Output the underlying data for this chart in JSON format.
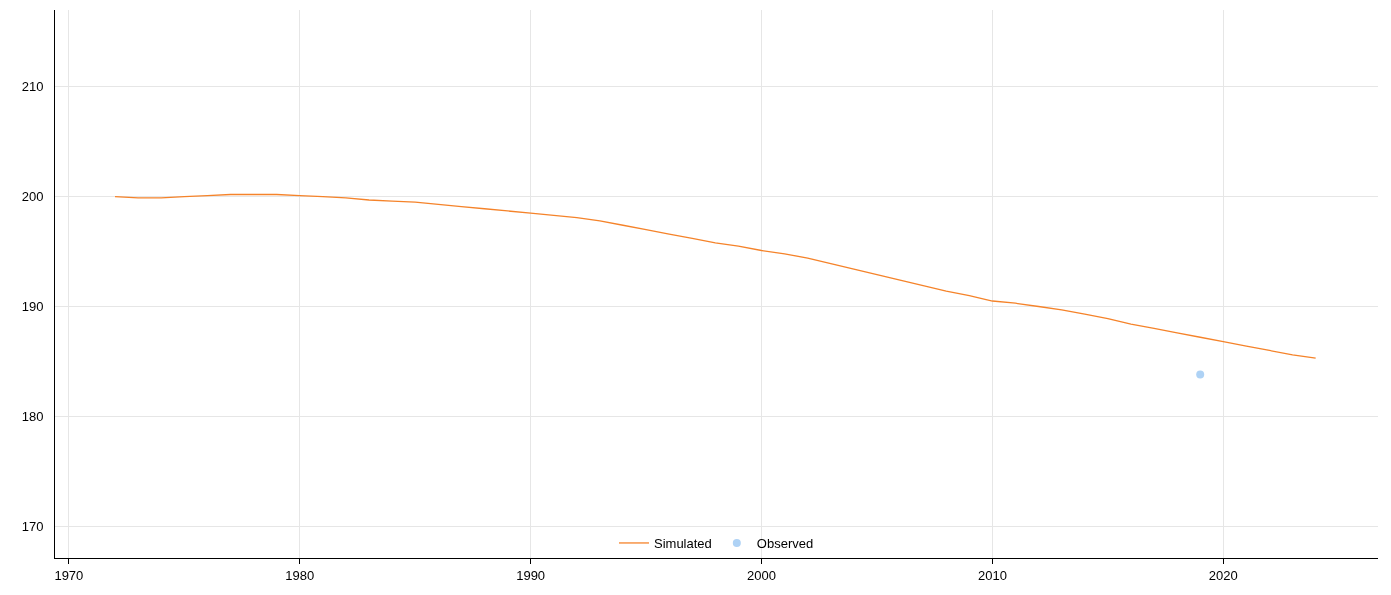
{
  "chart_data": {
    "type": "line",
    "xlim": [
      1969.4,
      2026.7
    ],
    "xticks": [
      1970,
      1980,
      1990,
      2000,
      2010,
      2020
    ],
    "ylim": [
      167.1,
      217
    ],
    "yticks": [
      170,
      180,
      190,
      200,
      210
    ],
    "grid": true,
    "legend": "bottom",
    "series": [
      {
        "name": "Simulated",
        "color": "#f5832a",
        "marker": "none",
        "line_style": "solid",
        "x": [
          1972,
          1973,
          1974,
          1975,
          1976,
          1977,
          1978,
          1979,
          1980,
          1981,
          1982,
          1983,
          1984,
          1985,
          1986,
          1987,
          1988,
          1989,
          1990,
          1991,
          1992,
          1993,
          1994,
          1995,
          1996,
          1997,
          1998,
          1999,
          2000,
          2001,
          2002,
          2003,
          2004,
          2005,
          2006,
          2007,
          2008,
          2009,
          2010,
          2011,
          2012,
          2013,
          2014,
          2015,
          2016,
          2017,
          2018,
          2019,
          2020,
          2021,
          2022,
          2023,
          2024
        ],
        "values": [
          200.0,
          199.9,
          199.9,
          200.0,
          200.1,
          200.2,
          200.2,
          200.2,
          200.1,
          200.0,
          199.9,
          199.7,
          199.6,
          199.5,
          199.3,
          199.1,
          198.9,
          198.7,
          198.5,
          198.3,
          198.1,
          197.8,
          197.4,
          197.0,
          196.6,
          196.2,
          195.8,
          195.5,
          195.1,
          194.8,
          194.4,
          193.9,
          193.4,
          192.9,
          192.4,
          191.9,
          191.4,
          191.0,
          190.5,
          190.3,
          190.0,
          189.7,
          189.3,
          188.9,
          188.4,
          188.0,
          187.6,
          187.2,
          186.8,
          186.4,
          186.0,
          185.6,
          185.3
        ]
      },
      {
        "name": "Observed",
        "type": "scatter",
        "color": "#aed2f5",
        "marker": "circle",
        "x": [
          2019
        ],
        "values": [
          183.8
        ]
      }
    ]
  }
}
